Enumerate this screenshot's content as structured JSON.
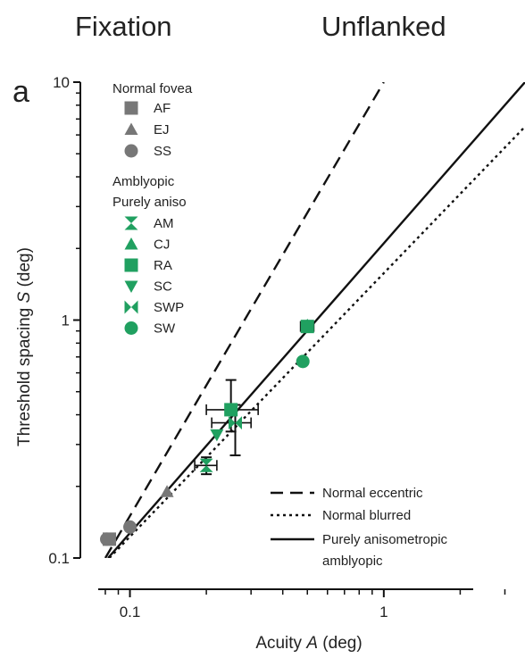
{
  "headers": {
    "left": "Fixation",
    "right": "Unflanked"
  },
  "panel_label": "a",
  "chart_data": {
    "type": "scatter",
    "title": "",
    "xlabel": "Acuity A (deg)",
    "ylabel": "Threshold spacing S (deg)",
    "x_scale": "log",
    "y_scale": "log",
    "xlim": [
      0.075,
      3.6
    ],
    "ylim": [
      0.1,
      10
    ],
    "x_tick_labels": [
      "0.1",
      "1"
    ],
    "y_tick_labels": [
      "0.1",
      "1",
      "10"
    ],
    "grid": false,
    "legend_placement": "top-left",
    "legend_groups": [
      {
        "title": "Normal fovea",
        "entries": [
          "AF",
          "EJ",
          "SS"
        ]
      },
      {
        "title": "Amblyopic",
        "entries": []
      },
      {
        "title": "Purely aniso",
        "entries": [
          "AM",
          "CJ",
          "RA",
          "SC",
          "SWP",
          "SW"
        ]
      }
    ],
    "series": [
      {
        "name": "AF",
        "marker": "square",
        "color": "#777777",
        "points": [
          [
            0.083,
            0.12
          ]
        ]
      },
      {
        "name": "EJ",
        "marker": "triangle-up",
        "color": "#777777",
        "points": [
          [
            0.14,
            0.19
          ]
        ]
      },
      {
        "name": "SS",
        "marker": "circle",
        "color": "#777777",
        "points": [
          [
            0.081,
            0.12
          ],
          [
            0.1,
            0.135
          ]
        ]
      },
      {
        "name": "AM",
        "marker": "hourglass",
        "color": "#20a060",
        "points": [
          [
            0.2,
            0.245
          ]
        ],
        "xerr": [
          [
            0.18,
            0.22
          ]
        ],
        "yerr": [
          [
            0.225,
            0.265
          ]
        ]
      },
      {
        "name": "CJ",
        "marker": "triangle-up",
        "color": "#20a060",
        "points": [
          [
            0.5,
            0.95
          ]
        ]
      },
      {
        "name": "RA",
        "marker": "square",
        "color": "#20a060",
        "points": [
          [
            0.25,
            0.42
          ],
          [
            0.5,
            0.94
          ]
        ],
        "xerr": [
          [
            0.2,
            0.32
          ],
          [
            0.47,
            0.53
          ]
        ],
        "yerr": [
          [
            0.34,
            0.56
          ],
          [
            0.9,
            0.99
          ]
        ]
      },
      {
        "name": "SC",
        "marker": "triangle-down",
        "color": "#20a060",
        "points": [
          [
            0.22,
            0.33
          ]
        ]
      },
      {
        "name": "SWP",
        "marker": "bowtie",
        "color": "#20a060",
        "points": [
          [
            0.26,
            0.37
          ]
        ],
        "xerr": [
          [
            0.21,
            0.3
          ]
        ],
        "yerr": [
          [
            0.27,
            0.44
          ]
        ]
      },
      {
        "name": "SW",
        "marker": "circle",
        "color": "#20a060",
        "points": [
          [
            0.48,
            0.67
          ]
        ]
      }
    ],
    "lines": [
      {
        "name": "Normal eccentric",
        "style": "dashed",
        "from": [
          0.08,
          0.1
        ],
        "to": [
          1.0,
          10.0
        ]
      },
      {
        "name": "Normal blurred",
        "style": "dotted",
        "from": [
          0.083,
          0.1
        ],
        "to": [
          3.6,
          6.5
        ]
      },
      {
        "name": "Purely anisometropic amblyopic",
        "style": "solid",
        "from": [
          0.082,
          0.1
        ],
        "to": [
          3.6,
          10.0
        ]
      }
    ],
    "line_legend": [
      "Normal eccentric",
      "Normal blurred",
      "Purely anisometropic",
      "amblyopic"
    ]
  }
}
